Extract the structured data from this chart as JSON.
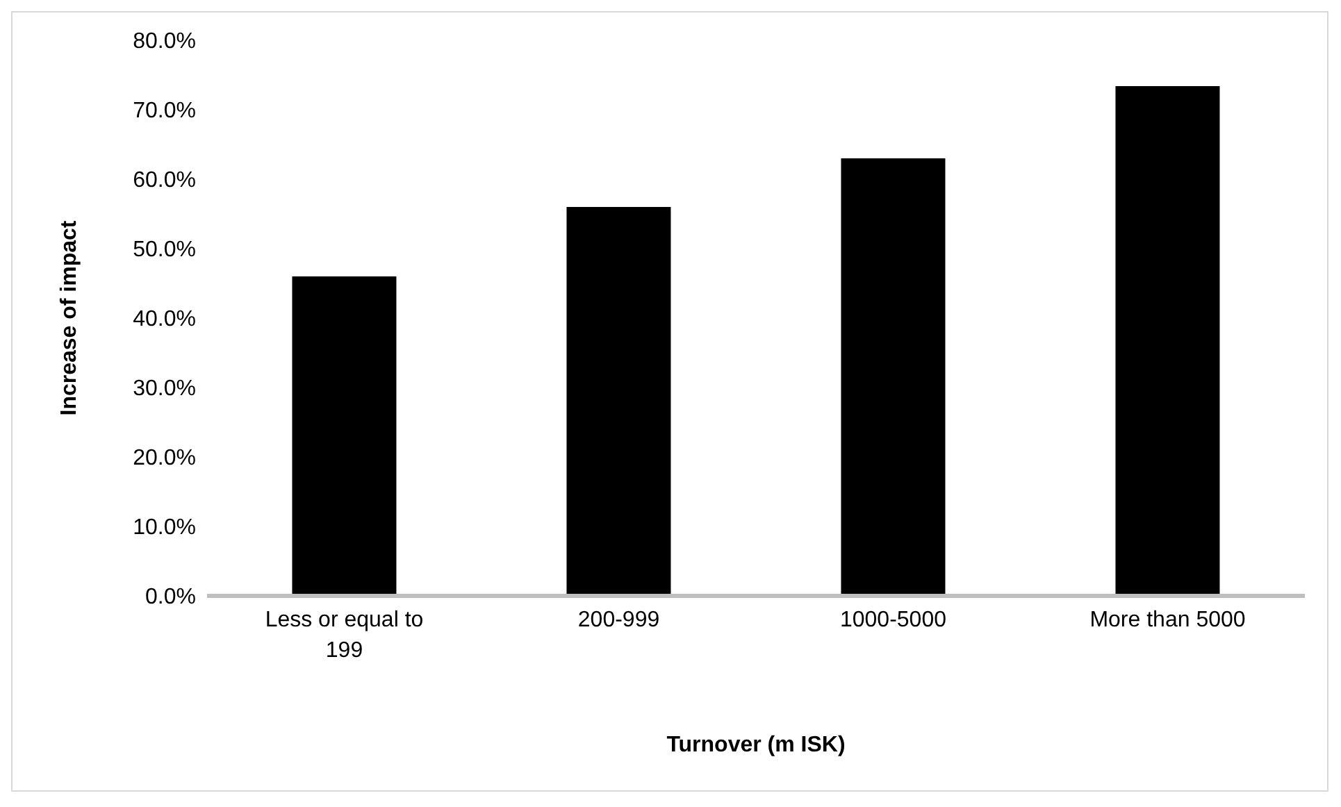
{
  "chart_data": {
    "type": "bar",
    "xlabel": "Turnover (m ISK)",
    "ylabel": "Increase of impact",
    "categories": [
      "Less or equal to 199",
      "200-999",
      "1000-5000",
      "More than 5000"
    ],
    "values": [
      46,
      56,
      63,
      73.4
    ],
    "color": "#000000",
    "ylim": [
      0,
      80
    ],
    "yticks": [
      {
        "value": 0,
        "label": "0.0%"
      },
      {
        "value": 10,
        "label": "10.0%"
      },
      {
        "value": 20,
        "label": "20.0%"
      },
      {
        "value": 30,
        "label": "30.0%"
      },
      {
        "value": 40,
        "label": "40.0%"
      },
      {
        "value": 50,
        "label": "50.0%"
      },
      {
        "value": 60,
        "label": "60.0%"
      },
      {
        "value": 70,
        "label": "70.0%"
      },
      {
        "value": 80,
        "label": "80.0%"
      }
    ],
    "grid": false,
    "legend": false
  }
}
